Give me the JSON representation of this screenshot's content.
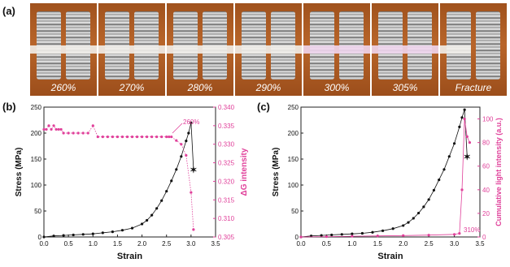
{
  "panel_labels": {
    "a": "(a)",
    "b": "(b)",
    "c": "(c)"
  },
  "photos": {
    "frames": [
      "260%",
      "270%",
      "280%",
      "290%",
      "300%",
      "305%",
      "Fracture"
    ]
  },
  "colors": {
    "black_series": "#111111",
    "pink_series": "#e0409a"
  },
  "chart_data": [
    {
      "type": "scatter",
      "panel": "(b)",
      "xlabel": "Strain",
      "ylabel": "Stress (MPa)",
      "y2label": "ΔG intensity",
      "xlim": [
        0.0,
        3.5
      ],
      "ylim": [
        0,
        250
      ],
      "y2lim": [
        0.305,
        0.34
      ],
      "xticks": [
        "0.0",
        "0.5",
        "1.0",
        "1.5",
        "2.0",
        "2.5",
        "3.0",
        "3.5"
      ],
      "yticks": [
        "0",
        "50",
        "100",
        "150",
        "200",
        "250"
      ],
      "y2ticks": [
        "0.305",
        "0.310",
        "0.315",
        "0.320",
        "0.325",
        "0.330",
        "0.335",
        "0.340"
      ],
      "annotation": "260%",
      "series": [
        {
          "axis": "left",
          "color": "#111111",
          "x": [
            0.0,
            0.2,
            0.4,
            0.6,
            0.8,
            1.0,
            1.2,
            1.4,
            1.6,
            1.8,
            2.0,
            2.1,
            2.2,
            2.3,
            2.4,
            2.5,
            2.6,
            2.7,
            2.8,
            2.9,
            2.95,
            3.0,
            3.05
          ],
          "y": [
            0,
            2,
            3,
            4,
            5,
            6,
            8,
            10,
            13,
            17,
            25,
            32,
            42,
            55,
            70,
            88,
            108,
            130,
            155,
            185,
            200,
            220,
            130
          ],
          "end_marker": {
            "x": 3.05,
            "y": 130
          }
        },
        {
          "axis": "right",
          "color": "#e0409a",
          "x": [
            0.0,
            0.05,
            0.1,
            0.15,
            0.2,
            0.25,
            0.3,
            0.35,
            0.4,
            0.5,
            0.6,
            0.7,
            0.8,
            0.9,
            1.0,
            1.1,
            1.2,
            1.3,
            1.4,
            1.5,
            1.6,
            1.7,
            1.8,
            1.9,
            2.0,
            2.1,
            2.2,
            2.3,
            2.4,
            2.5,
            2.55,
            2.6,
            2.7,
            2.8,
            2.9,
            3.0,
            3.05
          ],
          "y": [
            0.334,
            0.334,
            0.335,
            0.334,
            0.335,
            0.334,
            0.334,
            0.334,
            0.333,
            0.333,
            0.333,
            0.333,
            0.333,
            0.333,
            0.335,
            0.332,
            0.332,
            0.332,
            0.332,
            0.332,
            0.332,
            0.332,
            0.332,
            0.332,
            0.332,
            0.332,
            0.332,
            0.332,
            0.332,
            0.332,
            0.332,
            0.332,
            0.331,
            0.33,
            0.327,
            0.317,
            0.307
          ]
        }
      ]
    },
    {
      "type": "line",
      "panel": "(c)",
      "xlabel": "Strain",
      "ylabel": "Stress (MPa)",
      "y2label": "Cumulative light intensity (a.u.)",
      "xlim": [
        0.0,
        3.5
      ],
      "ylim": [
        0,
        250
      ],
      "y2lim": [
        0,
        110
      ],
      "xticks": [
        "0.0",
        "0.5",
        "1.0",
        "1.5",
        "2.0",
        "2.5",
        "3.0",
        "3.5"
      ],
      "yticks": [
        "0",
        "50",
        "100",
        "150",
        "200",
        "250"
      ],
      "y2ticks": [
        "0",
        "20",
        "40",
        "60",
        "80",
        "100"
      ],
      "annotation": "310%",
      "series": [
        {
          "axis": "left",
          "color": "#111111",
          "x": [
            0.0,
            0.2,
            0.4,
            0.6,
            0.8,
            1.0,
            1.2,
            1.4,
            1.6,
            1.8,
            2.0,
            2.1,
            2.2,
            2.3,
            2.4,
            2.5,
            2.6,
            2.7,
            2.8,
            2.9,
            3.0,
            3.1,
            3.15,
            3.2,
            3.25
          ],
          "y": [
            0,
            2,
            3,
            4,
            5,
            6,
            7,
            9,
            12,
            16,
            22,
            28,
            36,
            46,
            58,
            72,
            90,
            110,
            130,
            155,
            180,
            212,
            230,
            245,
            155
          ],
          "end_marker": {
            "x": 3.25,
            "y": 155
          }
        },
        {
          "axis": "right",
          "color": "#e0409a",
          "x": [
            0.0,
            0.5,
            1.0,
            1.5,
            2.0,
            2.5,
            3.0,
            3.1,
            3.15,
            3.2,
            3.25,
            3.3
          ],
          "y": [
            0,
            0.3,
            0.6,
            0.9,
            1.2,
            1.6,
            2.2,
            3.0,
            40,
            100,
            85,
            80
          ]
        }
      ]
    }
  ]
}
